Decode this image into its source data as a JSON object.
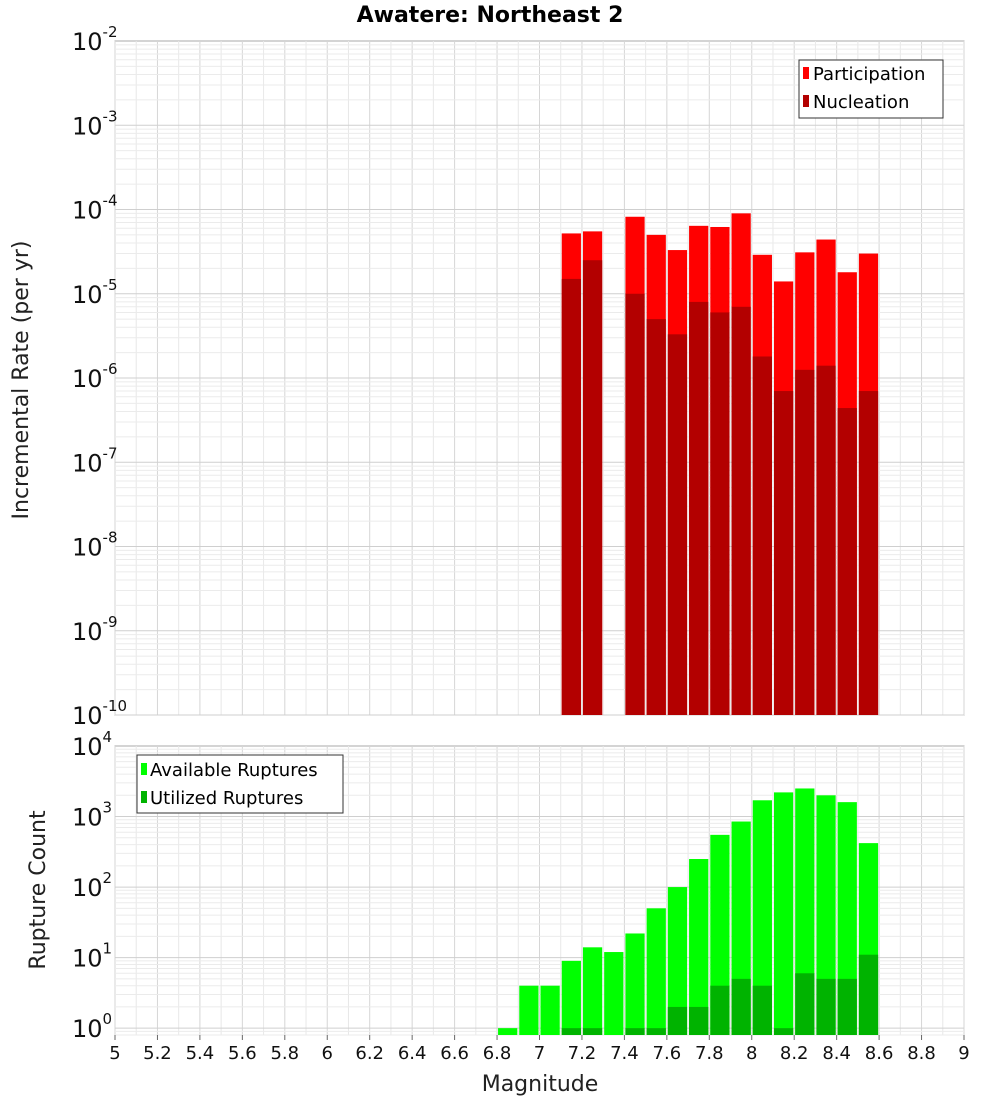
{
  "chart_data": [
    {
      "type": "bar",
      "title": "Awatere: Northeast 2",
      "xlabel": "",
      "ylabel": "Incremental Rate (per yr)",
      "yscale": "log",
      "ylim": [
        1e-10,
        0.01
      ],
      "xlim": [
        5,
        9
      ],
      "bin_width": 0.1,
      "grid": true,
      "legend_position": "top-right",
      "y_ticks": [
        {
          "base": "10",
          "exp": "-10"
        },
        {
          "base": "10",
          "exp": "-9"
        },
        {
          "base": "10",
          "exp": "-8"
        },
        {
          "base": "10",
          "exp": "-7"
        },
        {
          "base": "10",
          "exp": "-6"
        },
        {
          "base": "10",
          "exp": "-5"
        },
        {
          "base": "10",
          "exp": "-4"
        },
        {
          "base": "10",
          "exp": "-3"
        },
        {
          "base": "10",
          "exp": "-2"
        }
      ],
      "series": [
        {
          "name": "Participation",
          "color": "#ff0000",
          "x": [
            7.15,
            7.25,
            7.45,
            7.55,
            7.65,
            7.75,
            7.85,
            7.95,
            8.05,
            8.15,
            8.25,
            8.35,
            8.45,
            8.55
          ],
          "values": [
            5.2e-05,
            5.5e-05,
            8.2e-05,
            5e-05,
            3.3e-05,
            6.4e-05,
            6.2e-05,
            9e-05,
            2.9e-05,
            1.4e-05,
            3.1e-05,
            4.4e-05,
            1.8e-05,
            3e-05
          ]
        },
        {
          "name": "Nucleation",
          "color": "#b30000",
          "x": [
            7.15,
            7.25,
            7.45,
            7.55,
            7.65,
            7.75,
            7.85,
            7.95,
            8.05,
            8.15,
            8.25,
            8.35,
            8.45,
            8.55
          ],
          "values": [
            1.5e-05,
            2.5e-05,
            1e-05,
            5e-06,
            3.3e-06,
            8e-06,
            6e-06,
            7e-06,
            1.8e-06,
            7e-07,
            1.25e-06,
            1.4e-06,
            4.4e-07,
            7e-07
          ]
        }
      ]
    },
    {
      "type": "bar",
      "title": "",
      "xlabel": "Magnitude",
      "ylabel": "Rupture Count",
      "yscale": "log",
      "ylim": [
        0.8,
        10000
      ],
      "xlim": [
        5,
        9
      ],
      "bin_width": 0.1,
      "grid": true,
      "legend_position": "top-left",
      "x_ticks": [
        "5",
        "5.2",
        "5.4",
        "5.6",
        "5.8",
        "6",
        "6.2",
        "6.4",
        "6.6",
        "6.8",
        "7",
        "7.2",
        "7.4",
        "7.6",
        "7.8",
        "8",
        "8.2",
        "8.4",
        "8.6",
        "8.8",
        "9"
      ],
      "y_ticks": [
        {
          "base": "10",
          "exp": "0"
        },
        {
          "base": "10",
          "exp": "1"
        },
        {
          "base": "10",
          "exp": "2"
        },
        {
          "base": "10",
          "exp": "3"
        },
        {
          "base": "10",
          "exp": "4"
        }
      ],
      "series": [
        {
          "name": "Available Ruptures",
          "color": "#00ff00",
          "x": [
            6.85,
            6.95,
            7.05,
            7.15,
            7.25,
            7.35,
            7.45,
            7.55,
            7.65,
            7.75,
            7.85,
            7.95,
            8.05,
            8.15,
            8.25,
            8.35,
            8.45,
            8.55
          ],
          "values": [
            1,
            4,
            4,
            9,
            14,
            12,
            22,
            50,
            100,
            250,
            550,
            850,
            1700,
            2200,
            2500,
            2000,
            1600,
            420
          ]
        },
        {
          "name": "Utilized Ruptures",
          "color": "#00b300",
          "x": [
            7.15,
            7.25,
            7.45,
            7.55,
            7.65,
            7.75,
            7.85,
            7.95,
            8.05,
            8.15,
            8.25,
            8.35,
            8.45,
            8.55
          ],
          "values": [
            1,
            1,
            1,
            1,
            2,
            2,
            4,
            5,
            4,
            1,
            6,
            5,
            5,
            11
          ]
        }
      ]
    }
  ]
}
